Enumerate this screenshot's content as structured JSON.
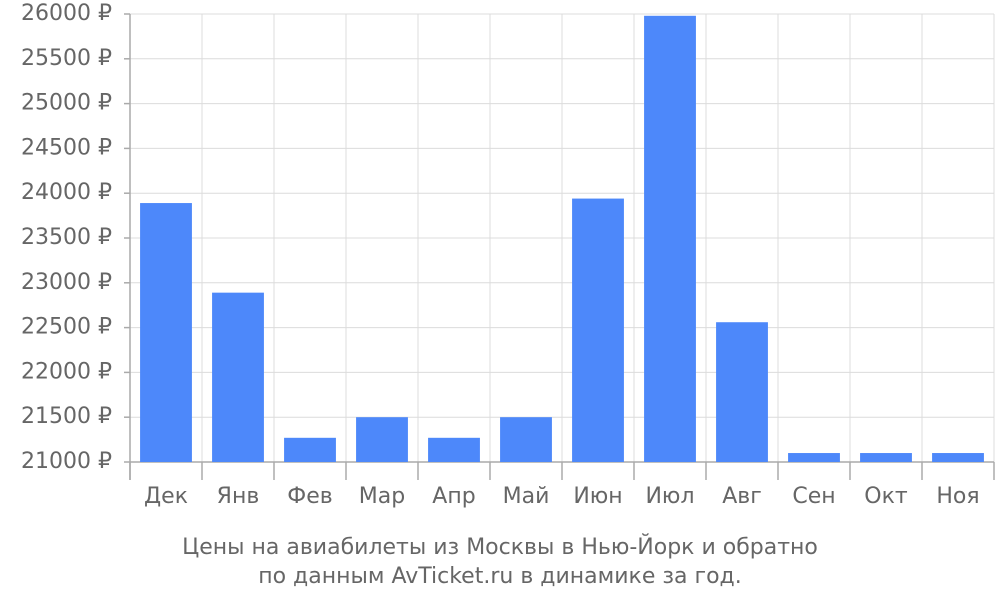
{
  "chart_data": {
    "type": "bar",
    "caption": [
      "Цены на авиабилеты из Москвы в Нью-Йорк и обратно",
      "по данным AvTicket.ru в динамике за год."
    ],
    "categories": [
      "Дек",
      "Янв",
      "Фев",
      "Мар",
      "Апр",
      "Май",
      "Июн",
      "Июл",
      "Авг",
      "Сен",
      "Окт",
      "Ноя"
    ],
    "values": [
      23890,
      22890,
      21270,
      21500,
      21270,
      21500,
      23940,
      25980,
      22560,
      21100,
      21100,
      21100
    ],
    "color": "#4d88fa",
    "ylim": [
      21000,
      26000
    ],
    "yticks": [
      {
        "value": 21000,
        "label": "21000 ₽"
      },
      {
        "value": 21500,
        "label": "21500 ₽"
      },
      {
        "value": 22000,
        "label": "22000 ₽"
      },
      {
        "value": 22500,
        "label": "22500 ₽"
      },
      {
        "value": 23000,
        "label": "23000 ₽"
      },
      {
        "value": 23500,
        "label": "23500 ₽"
      },
      {
        "value": 24000,
        "label": "24000 ₽"
      },
      {
        "value": 24500,
        "label": "24500 ₽"
      },
      {
        "value": 25000,
        "label": "25000 ₽"
      },
      {
        "value": 25500,
        "label": "25500 ₽"
      },
      {
        "value": 26000,
        "label": "26000 ₽"
      }
    ],
    "grid": true
  }
}
